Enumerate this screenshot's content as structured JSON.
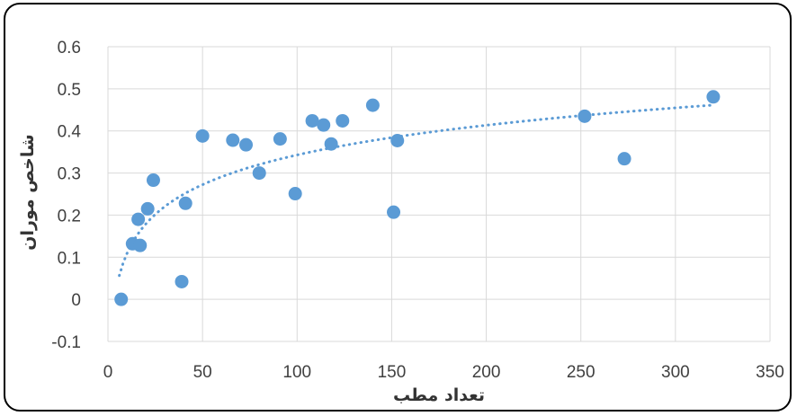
{
  "chart_data": {
    "type": "scatter",
    "xlabel": "تعداد مطب",
    "ylabel": "شاخص موران",
    "xlim": [
      0,
      350
    ],
    "ylim": [
      -0.1,
      0.6
    ],
    "x_ticks": [
      "0",
      "50",
      "100",
      "150",
      "200",
      "250",
      "300",
      "350"
    ],
    "y_ticks": [
      "-0.1",
      "0",
      "0.1",
      "0.2",
      "0.3",
      "0.4",
      "0.5",
      "0.6"
    ],
    "grid": true,
    "legend": "none",
    "marker_color": "#5b9bd5",
    "trendline": {
      "type": "logarithmic",
      "style": "dotted",
      "color": "#5b9bd5",
      "x_range": [
        6,
        320
      ]
    },
    "series": [
      {
        "points": [
          [
            7,
            0.0
          ],
          [
            13,
            0.132
          ],
          [
            16,
            0.19
          ],
          [
            17,
            0.128
          ],
          [
            21,
            0.215
          ],
          [
            24,
            0.283
          ],
          [
            39,
            0.042
          ],
          [
            41,
            0.228
          ],
          [
            50,
            0.388
          ],
          [
            66,
            0.378
          ],
          [
            73,
            0.367
          ],
          [
            80,
            0.3
          ],
          [
            91,
            0.381
          ],
          [
            99,
            0.251
          ],
          [
            108,
            0.424
          ],
          [
            114,
            0.414
          ],
          [
            118,
            0.369
          ],
          [
            124,
            0.424
          ],
          [
            140,
            0.461
          ],
          [
            151,
            0.207
          ],
          [
            153,
            0.377
          ],
          [
            252,
            0.435
          ],
          [
            273,
            0.334
          ],
          [
            320,
            0.481
          ]
        ]
      }
    ]
  }
}
